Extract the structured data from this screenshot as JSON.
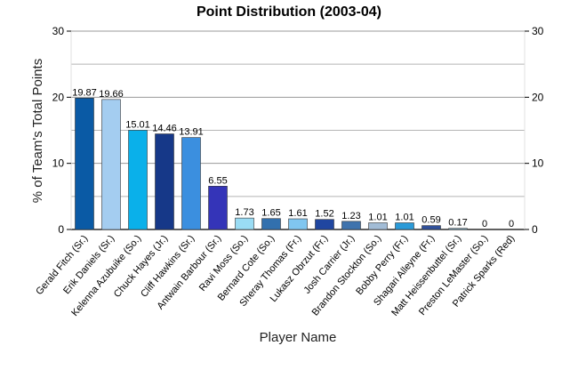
{
  "chart_data": {
    "type": "bar",
    "title": "Point Distribution (2003-04)",
    "xlabel": "Player Name",
    "ylabel": "% of Team's Total Points",
    "ylim": [
      0,
      30
    ],
    "yticks": [
      0,
      10,
      20,
      30
    ],
    "grid": true,
    "categories": [
      "Gerald Fitch (Sr.)",
      "Erik Daniels (Sr.)",
      "Kelenna Azubuike (So.)",
      "Chuck Hayes (Jr.)",
      "Cliff Hawkins (Sr.)",
      "Antwain Barbour (Sr.)",
      "Ravi Moss (So.)",
      "Bernard Cote (So.)",
      "Sheray Thomas (Fr.)",
      "Lukasz Obrzut (Fr.)",
      "Josh Carrier (Jr.)",
      "Brandon Stockton (So.)",
      "Bobby Perry (Fr.)",
      "Shagari Alleyne (Fr.)",
      "Matt Heissenbuttel (Sr.)",
      "Preston LeMaster (So.)",
      "Patrick Sparks (Red)"
    ],
    "values": [
      19.87,
      19.66,
      15.01,
      14.46,
      13.91,
      6.55,
      1.73,
      1.65,
      1.61,
      1.52,
      1.23,
      1.01,
      1.01,
      0.59,
      0.17,
      0,
      0
    ],
    "value_labels": [
      "19.87",
      "19.66",
      "15.01",
      "14.46",
      "13.91",
      "6.55",
      "1.73",
      "1.65",
      "1.61",
      "1.52",
      "1.23",
      "1.01",
      "1.01",
      "0.59",
      "0.17",
      "0",
      "0"
    ],
    "colors": [
      "#0a5aa5",
      "#a4cdf0",
      "#0ab0ea",
      "#163888",
      "#3b8fdf",
      "#3434b8",
      "#9adcf4",
      "#3270ae",
      "#80c6f0",
      "#2046a0",
      "#3f73ad",
      "#a2bcd6",
      "#2a9ad8",
      "#30509a",
      "#8abcd6",
      "#1e3d87",
      "#4a8fc0"
    ]
  }
}
